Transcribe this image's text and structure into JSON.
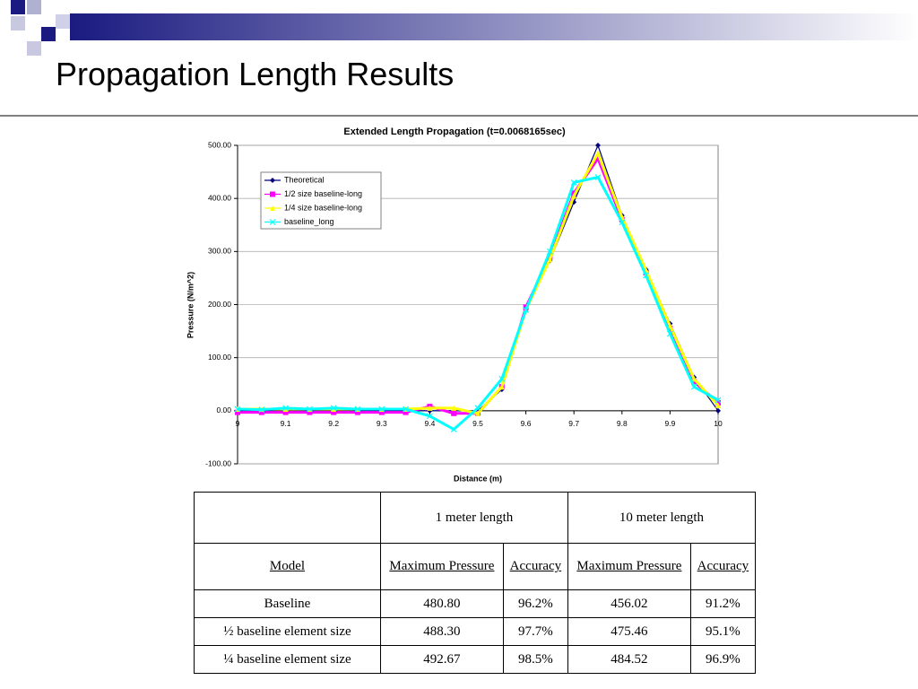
{
  "header": {
    "title": "Propagation Length Results"
  },
  "chart_data": {
    "type": "line",
    "title": "Extended Length Propagation (t=0.0068165sec)",
    "x_label": "Distance (m)",
    "y_label": "Pressure (N/m^2)",
    "x": [
      9,
      9.05,
      9.1,
      9.15,
      9.2,
      9.25,
      9.3,
      9.35,
      9.4,
      9.45,
      9.5,
      9.55,
      9.6,
      9.65,
      9.7,
      9.75,
      9.8,
      9.85,
      9.9,
      9.95,
      10
    ],
    "series": [
      {
        "name": "Theoretical",
        "color": "#000080",
        "marker": "diamond",
        "values": [
          0,
          0,
          0,
          0,
          0,
          0,
          0,
          0,
          0,
          0,
          0,
          40,
          190,
          283,
          393,
          500,
          368,
          266,
          164,
          63,
          0
        ]
      },
      {
        "name": "1/2 size baseline-long",
        "color": "#ff00ff",
        "marker": "square",
        "values": [
          -3,
          -3,
          -3,
          -3,
          -3,
          -3,
          -3,
          -3,
          8,
          -5,
          -5,
          45,
          195,
          290,
          410,
          475,
          360,
          260,
          155,
          55,
          15
        ]
      },
      {
        "name": "1/4 size baseline-long",
        "color": "#ffff00",
        "marker": "triangle",
        "values": [
          3,
          3,
          3,
          3,
          3,
          3,
          3,
          3,
          5,
          5,
          -5,
          45,
          190,
          285,
          405,
          485,
          365,
          265,
          160,
          60,
          10
        ]
      },
      {
        "name": "baseline_long",
        "color": "#00ffff",
        "marker": "x",
        "values": [
          3,
          2,
          5,
          3,
          5,
          3,
          3,
          3,
          -10,
          -35,
          5,
          60,
          190,
          300,
          430,
          440,
          355,
          255,
          145,
          45,
          20
        ]
      }
    ],
    "xlim": [
      9,
      10
    ],
    "xticks": [
      9,
      9.1,
      9.2,
      9.3,
      9.4,
      9.5,
      9.6,
      9.7,
      9.8,
      9.9,
      10
    ],
    "ylim": [
      -100,
      500
    ],
    "yticks": [
      {
        "value": -100,
        "label": "-100.00"
      },
      {
        "value": 0,
        "label": "0.00"
      },
      {
        "value": 100,
        "label": "100.00"
      },
      {
        "value": 200,
        "label": "200.00"
      },
      {
        "value": 300,
        "label": "300.00"
      },
      {
        "value": 400,
        "label": "400.00"
      },
      {
        "value": 500,
        "label": "500.00"
      }
    ],
    "grid": true,
    "legend": "upper-left"
  },
  "table": {
    "groups": [
      "1 meter length",
      "10 meter length"
    ],
    "columns": [
      "Model",
      "Maximum Pressure",
      "Accuracy",
      "Maximum Pressure",
      "Accuracy"
    ],
    "rows": [
      [
        "Baseline",
        "480.80",
        "96.2%",
        "456.02",
        "91.2%"
      ],
      [
        "½ baseline element size",
        "488.30",
        "97.7%",
        "475.46",
        "95.1%"
      ],
      [
        "¼ baseline element size",
        "492.67",
        "98.5%",
        "484.52",
        "96.9%"
      ]
    ]
  }
}
